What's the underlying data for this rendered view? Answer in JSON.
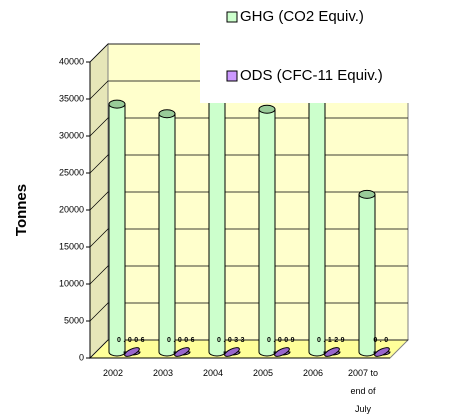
{
  "chart_data": {
    "type": "bar3d",
    "y_label": "Tonnes",
    "categories": [
      "2002",
      "2003",
      "2004",
      "2005",
      "2006",
      "2007 to end of July"
    ],
    "series": [
      {
        "name": "GHG (CO2 Equiv.)",
        "color": "#ccffcc",
        "values": [
          33500,
          32200,
          37000,
          32800,
          38000,
          21300
        ]
      },
      {
        "name": "ODS (CFC-11 Equiv.)",
        "color": "#cc99ff",
        "values": [
          0.006,
          0.006,
          0.033,
          0.009,
          0.129,
          0.01
        ],
        "value_labels": [
          "0.006",
          "0.006",
          "0.033",
          "0.009",
          "0.129",
          "0.0"
        ]
      }
    ],
    "ylim": [
      0,
      40000
    ],
    "yticks": [
      0,
      5000,
      10000,
      15000,
      20000,
      25000,
      30000,
      35000,
      40000
    ],
    "grid": true,
    "legend": "top-right"
  }
}
